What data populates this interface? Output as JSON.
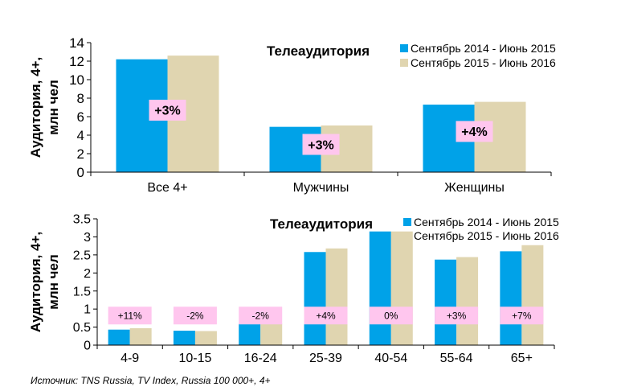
{
  "colors": {
    "series1": "#00a2e8",
    "series2": "#e0d5b0",
    "badge": "#ffc6ee",
    "axis": "#000000"
  },
  "chart_data": [
    {
      "type": "bar",
      "title": "Телеаудитория",
      "ylabel": "Аудитория, 4+, млн чел",
      "ylabel_lines": [
        "Аудитория, 4+,",
        "млн чел"
      ],
      "ylim": [
        0,
        14
      ],
      "yticks": [
        "0",
        "2",
        "4",
        "6",
        "8",
        "10",
        "12",
        "14"
      ],
      "categories": [
        "Все 4+",
        "Мужчины",
        "Женщины"
      ],
      "series": [
        {
          "name": "Сентябрь 2014 - Июнь 2015",
          "values": [
            12.2,
            4.9,
            7.3
          ]
        },
        {
          "name": "Сентябрь 2015 - Июнь 2016",
          "values": [
            12.6,
            5.05,
            7.6
          ]
        }
      ],
      "annotations": [
        "+3%",
        "+3%",
        "+4%"
      ],
      "annotation_levels": [
        6.7,
        3.0,
        4.4
      ]
    },
    {
      "type": "bar",
      "title": "Телеаудитория",
      "ylabel": "Аудитория, 4+, млн чел",
      "ylabel_lines": [
        "Аудитория, 4+,",
        "млн чел"
      ],
      "ylim": [
        0,
        3.5
      ],
      "yticks": [
        "0",
        "0.5",
        "1",
        "1.5",
        "2",
        "2.5",
        "3",
        "3.5"
      ],
      "categories": [
        "4-9",
        "10-15",
        "16-24",
        "25-39",
        "40-54",
        "55-64",
        "65+"
      ],
      "series": [
        {
          "name": "Сентябрь 2014 - Июнь 2015",
          "values": [
            0.43,
            0.4,
            0.6,
            2.58,
            3.15,
            2.37,
            2.6
          ]
        },
        {
          "name": "Сентябрь 2015 - Июнь 2016",
          "values": [
            0.47,
            0.39,
            0.6,
            2.68,
            3.15,
            2.44,
            2.77
          ]
        }
      ],
      "annotations": [
        "+11%",
        "-2%",
        "-2%",
        "+4%",
        "0%",
        "+3%",
        "+7%"
      ],
      "annotation_levels": [
        0.82,
        0.82,
        0.82,
        0.82,
        0.82,
        0.82,
        0.82
      ]
    }
  ],
  "source": "Источник: TNS Russia, TV Index, Russia 100 000+, 4+"
}
